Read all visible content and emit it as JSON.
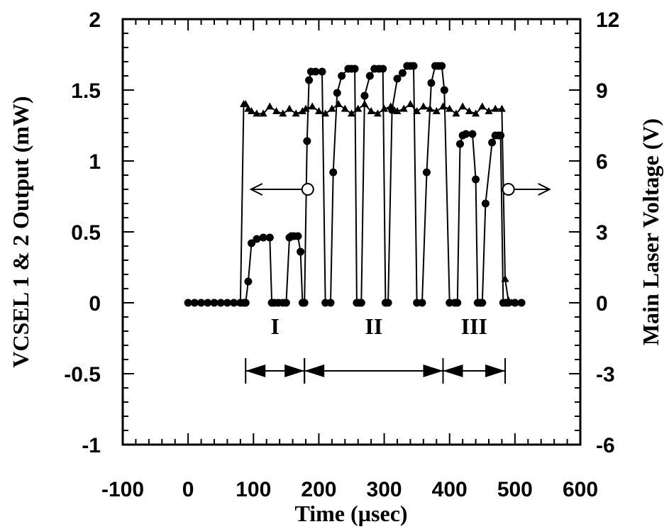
{
  "chart_data": {
    "type": "line",
    "xlabel": "Time  (µsec)",
    "ylabel": "VCSEL 1 & 2 Output (mW)",
    "y2label": "Main Laser Voltage  (V)",
    "xlim": [
      -100,
      600
    ],
    "ylim": [
      -1,
      2
    ],
    "y2lim": [
      -6,
      12
    ],
    "xticks": [
      "-100",
      "0",
      "100",
      "200",
      "300",
      "400",
      "500",
      "600"
    ],
    "yticks": [
      "-1",
      "-0.5",
      "0",
      "0.5",
      "1",
      "1.5",
      "2"
    ],
    "y2ticks": [
      "-6",
      "-3",
      "0",
      "3",
      "6",
      "9",
      "12"
    ],
    "regions": [
      {
        "label": "I",
        "start": 88,
        "end": 178
      },
      {
        "label": "II",
        "start": 178,
        "end": 390
      },
      {
        "label": "III",
        "start": 390,
        "end": 485
      }
    ],
    "annotations": [
      {
        "marker": "open-circle",
        "x": 183,
        "y": 0.8,
        "arrow": "left"
      },
      {
        "marker": "open-circle",
        "x": 490,
        "y": 0.8,
        "arrow": "right"
      }
    ],
    "series": [
      {
        "marker": "circle",
        "axis": "left",
        "x": [
          0,
          10,
          20,
          30,
          40,
          50,
          60,
          70,
          80,
          85,
          88,
          92,
          97,
          105,
          115,
          125,
          128,
          132,
          138,
          145,
          150,
          155,
          158,
          162,
          168,
          172,
          175,
          178,
          182,
          185,
          188,
          195,
          205,
          210,
          218,
          222,
          228,
          235,
          245,
          250,
          255,
          258,
          262,
          265,
          270,
          278,
          285,
          292,
          298,
          302,
          306,
          312,
          320,
          328,
          335,
          340,
          345,
          350,
          358,
          365,
          372,
          378,
          383,
          388,
          392,
          400,
          408,
          412,
          416,
          420,
          425,
          435,
          440,
          443,
          447,
          450,
          455,
          465,
          470,
          475,
          478,
          482,
          486,
          490,
          500,
          510
        ],
        "y": [
          0,
          0,
          0,
          0,
          0,
          0,
          0,
          0,
          0,
          0,
          0,
          0.15,
          0.42,
          0.45,
          0.46,
          0.46,
          0,
          0,
          0,
          0,
          0,
          0.46,
          0.47,
          0.47,
          0.47,
          0.36,
          0,
          0,
          1.14,
          1.57,
          1.63,
          1.63,
          1.63,
          0,
          0,
          0.92,
          1.48,
          1.6,
          1.65,
          1.65,
          1.65,
          0,
          0,
          0,
          1.46,
          1.6,
          1.65,
          1.65,
          1.65,
          0,
          0,
          1.36,
          1.58,
          1.62,
          1.67,
          1.67,
          1.67,
          0,
          0,
          0.92,
          1.55,
          1.67,
          1.67,
          1.67,
          1.5,
          0,
          0,
          0,
          1.12,
          1.18,
          1.19,
          1.19,
          0.87,
          0,
          0,
          0,
          0.7,
          1.13,
          1.18,
          1.18,
          1.18,
          0,
          0,
          0,
          0,
          0
        ]
      },
      {
        "marker": "triangle",
        "axis": "right",
        "x": [
          80,
          85,
          88,
          92,
          97,
          105,
          115,
          125,
          135,
          145,
          155,
          165,
          175,
          180,
          190,
          200,
          210,
          220,
          230,
          240,
          250,
          260,
          270,
          280,
          290,
          300,
          310,
          320,
          330,
          340,
          350,
          360,
          370,
          380,
          390,
          400,
          410,
          420,
          430,
          440,
          450,
          460,
          470,
          480,
          485,
          490,
          495,
          500
        ],
        "y": [
          0,
          8.4,
          8.4,
          8.2,
          8.1,
          8.0,
          8.0,
          8.3,
          8.1,
          8.0,
          8.2,
          8.0,
          8.1,
          8.2,
          8.3,
          8.1,
          8.0,
          8.2,
          8.4,
          8.2,
          8.0,
          8.2,
          8.4,
          8.1,
          8.0,
          8.2,
          8.3,
          8.1,
          8.2,
          8.4,
          8.1,
          8.3,
          8.2,
          8.1,
          8.3,
          8.2,
          8.0,
          8.3,
          8.1,
          8.0,
          8.3,
          8.1,
          8.2,
          8.2,
          1.0,
          0.1,
          0,
          0
        ]
      }
    ]
  }
}
